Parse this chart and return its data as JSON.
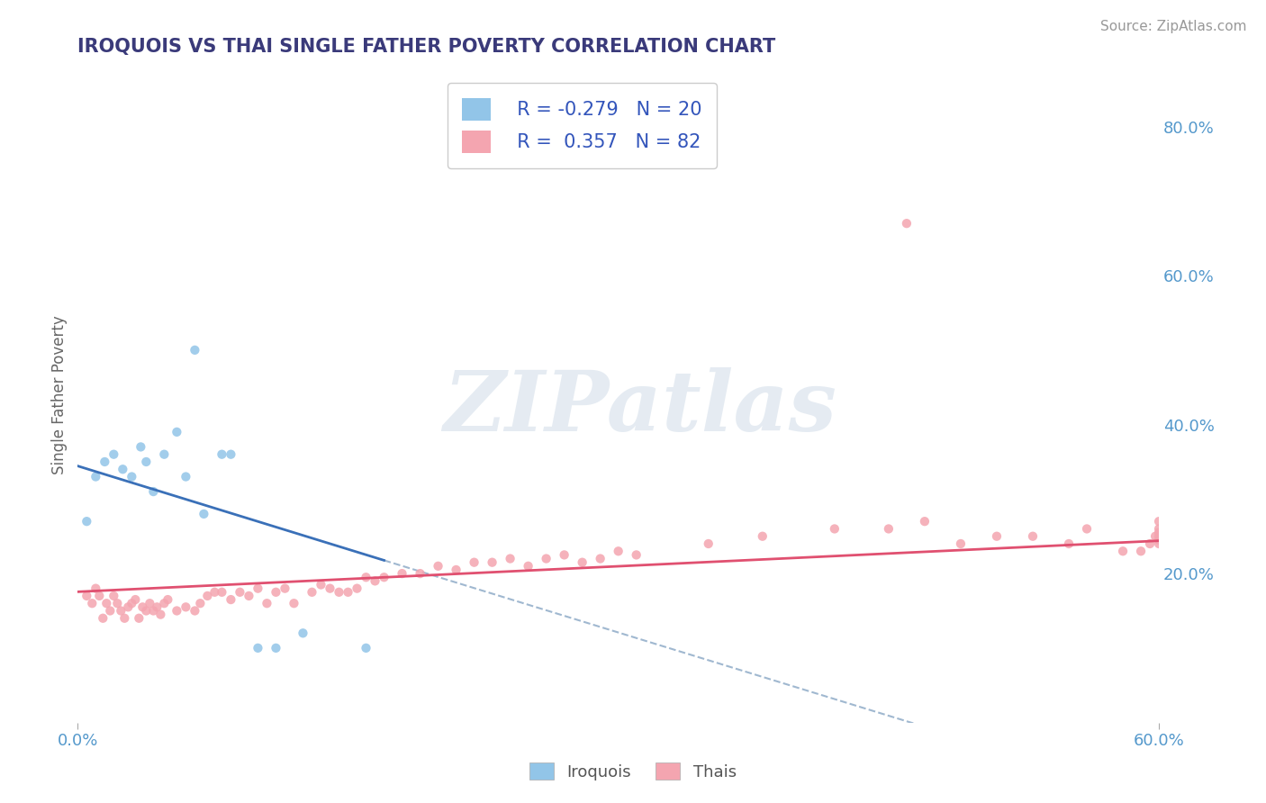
{
  "title": "IROQUOIS VS THAI SINGLE FATHER POVERTY CORRELATION CHART",
  "source": "Source: ZipAtlas.com",
  "ylabel": "Single Father Poverty",
  "xlim": [
    0.0,
    0.6
  ],
  "ylim": [
    0.0,
    0.88
  ],
  "xtick_positions": [
    0.0,
    0.6
  ],
  "xtick_labels": [
    "0.0%",
    "60.0%"
  ],
  "yticks_right": [
    0.2,
    0.4,
    0.6,
    0.8
  ],
  "ytick_labels_right": [
    "20.0%",
    "40.0%",
    "60.0%",
    "80.0%"
  ],
  "R_iroquois": -0.279,
  "N_iroquois": 20,
  "R_thais": 0.357,
  "N_thais": 82,
  "color_iroquois": "#92c5e8",
  "color_thais": "#f4a5b0",
  "line_color_iroquois": "#3a70b8",
  "line_color_thais": "#e05070",
  "line_dash_color": "#a0b8d0",
  "watermark_text": "ZIPatlas",
  "background_color": "#ffffff",
  "grid_color": "#c8c8c8",
  "title_color": "#3a3a7a",
  "tick_label_color": "#5599cc",
  "iroquois_x": [
    0.005,
    0.01,
    0.015,
    0.02,
    0.025,
    0.03,
    0.035,
    0.038,
    0.042,
    0.048,
    0.055,
    0.06,
    0.065,
    0.07,
    0.08,
    0.085,
    0.1,
    0.11,
    0.125,
    0.16
  ],
  "iroquois_y": [
    0.27,
    0.33,
    0.35,
    0.36,
    0.34,
    0.33,
    0.37,
    0.35,
    0.31,
    0.36,
    0.39,
    0.33,
    0.5,
    0.28,
    0.36,
    0.36,
    0.1,
    0.1,
    0.12,
    0.1
  ],
  "thais_x": [
    0.005,
    0.008,
    0.01,
    0.012,
    0.014,
    0.016,
    0.018,
    0.02,
    0.022,
    0.024,
    0.026,
    0.028,
    0.03,
    0.032,
    0.034,
    0.036,
    0.038,
    0.04,
    0.042,
    0.044,
    0.046,
    0.048,
    0.05,
    0.055,
    0.06,
    0.065,
    0.068,
    0.072,
    0.076,
    0.08,
    0.085,
    0.09,
    0.095,
    0.1,
    0.105,
    0.11,
    0.115,
    0.12,
    0.13,
    0.135,
    0.14,
    0.145,
    0.15,
    0.155,
    0.16,
    0.165,
    0.17,
    0.18,
    0.19,
    0.2,
    0.21,
    0.22,
    0.23,
    0.24,
    0.25,
    0.26,
    0.27,
    0.28,
    0.29,
    0.3,
    0.31,
    0.35,
    0.38,
    0.42,
    0.45,
    0.46,
    0.47,
    0.49,
    0.51,
    0.53,
    0.55,
    0.56,
    0.58,
    0.59,
    0.595,
    0.598,
    0.6,
    0.6,
    0.6,
    0.6,
    0.6,
    0.6
  ],
  "thais_y": [
    0.17,
    0.16,
    0.18,
    0.17,
    0.14,
    0.16,
    0.15,
    0.17,
    0.16,
    0.15,
    0.14,
    0.155,
    0.16,
    0.165,
    0.14,
    0.155,
    0.15,
    0.16,
    0.15,
    0.155,
    0.145,
    0.16,
    0.165,
    0.15,
    0.155,
    0.15,
    0.16,
    0.17,
    0.175,
    0.175,
    0.165,
    0.175,
    0.17,
    0.18,
    0.16,
    0.175,
    0.18,
    0.16,
    0.175,
    0.185,
    0.18,
    0.175,
    0.175,
    0.18,
    0.195,
    0.19,
    0.195,
    0.2,
    0.2,
    0.21,
    0.205,
    0.215,
    0.215,
    0.22,
    0.21,
    0.22,
    0.225,
    0.215,
    0.22,
    0.23,
    0.225,
    0.24,
    0.25,
    0.26,
    0.26,
    0.67,
    0.27,
    0.24,
    0.25,
    0.25,
    0.24,
    0.26,
    0.23,
    0.23,
    0.24,
    0.25,
    0.26,
    0.27,
    0.245,
    0.255,
    0.24,
    0.25
  ]
}
